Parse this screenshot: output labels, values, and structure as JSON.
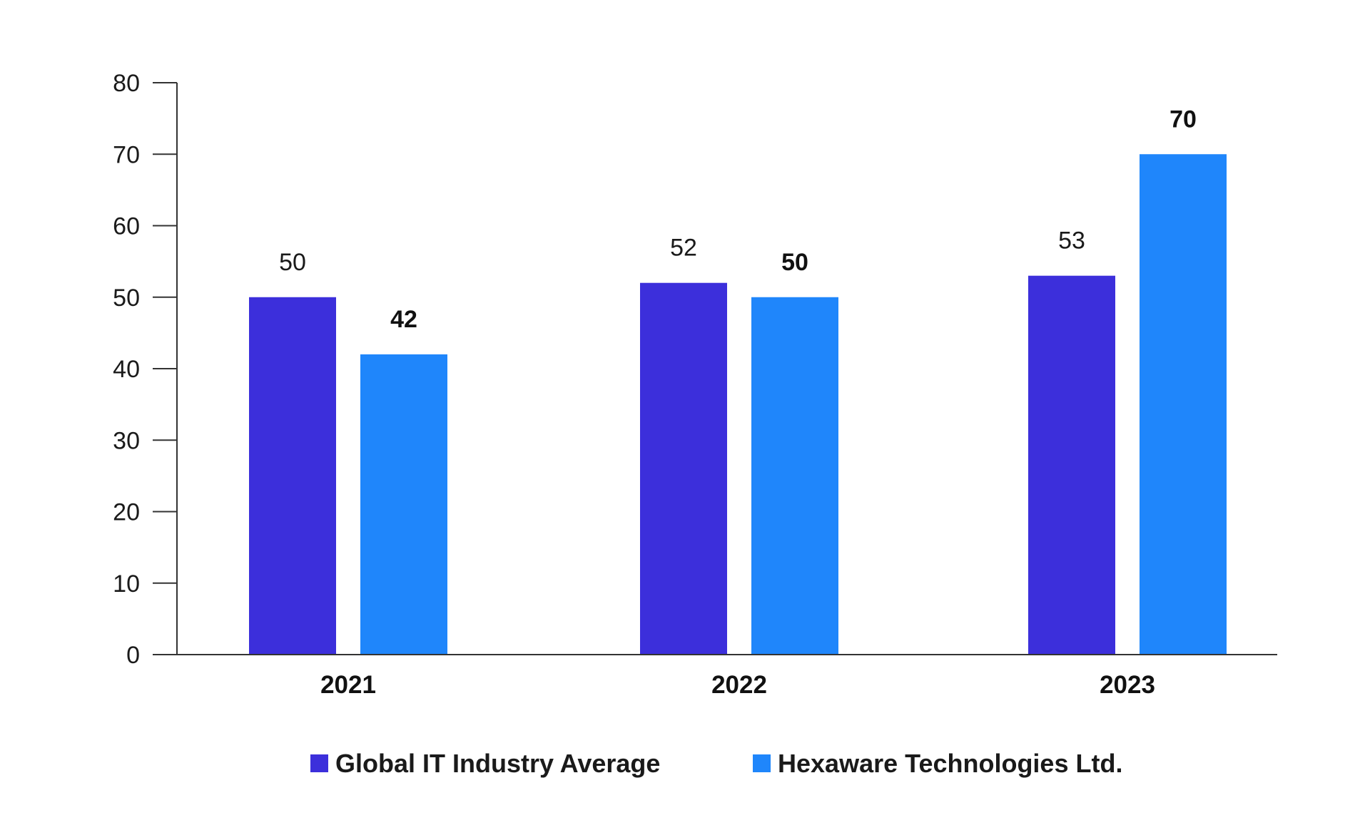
{
  "chart_data": {
    "type": "bar",
    "categories": [
      "2021",
      "2022",
      "2023"
    ],
    "series": [
      {
        "name": "Global IT Industry Average",
        "values": [
          50,
          52,
          53
        ],
        "color": "#3c2fdb",
        "label_style": "regular"
      },
      {
        "name": "Hexaware Technologies Ltd.",
        "values": [
          42,
          50,
          70
        ],
        "color": "#1f86fb",
        "label_style": "bold"
      }
    ],
    "y_ticks": [
      0,
      10,
      20,
      30,
      40,
      50,
      60,
      70,
      80
    ],
    "ylim": [
      0,
      80
    ],
    "title": "",
    "xlabel": "",
    "ylabel": "",
    "grid": false,
    "legend_position": "bottom-center"
  }
}
